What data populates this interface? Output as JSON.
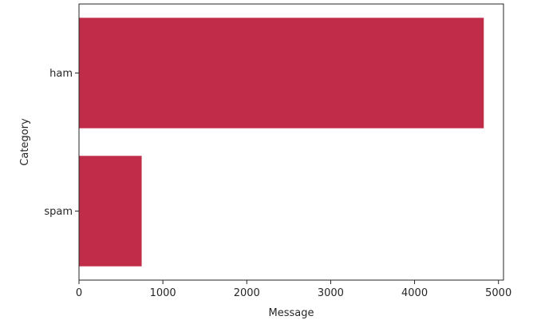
{
  "chart_data": {
    "type": "bar",
    "orientation": "horizontal",
    "categories": [
      "ham",
      "spam"
    ],
    "values": [
      4825,
      747
    ],
    "xlabel": "Message",
    "ylabel": "Category",
    "xlim": [
      0,
      5060
    ],
    "xticks": [
      0,
      1000,
      2000,
      3000,
      4000,
      5000
    ],
    "grid": false,
    "legend": "none",
    "bar_color": "#c12c48",
    "axis_color": "#262626"
  }
}
